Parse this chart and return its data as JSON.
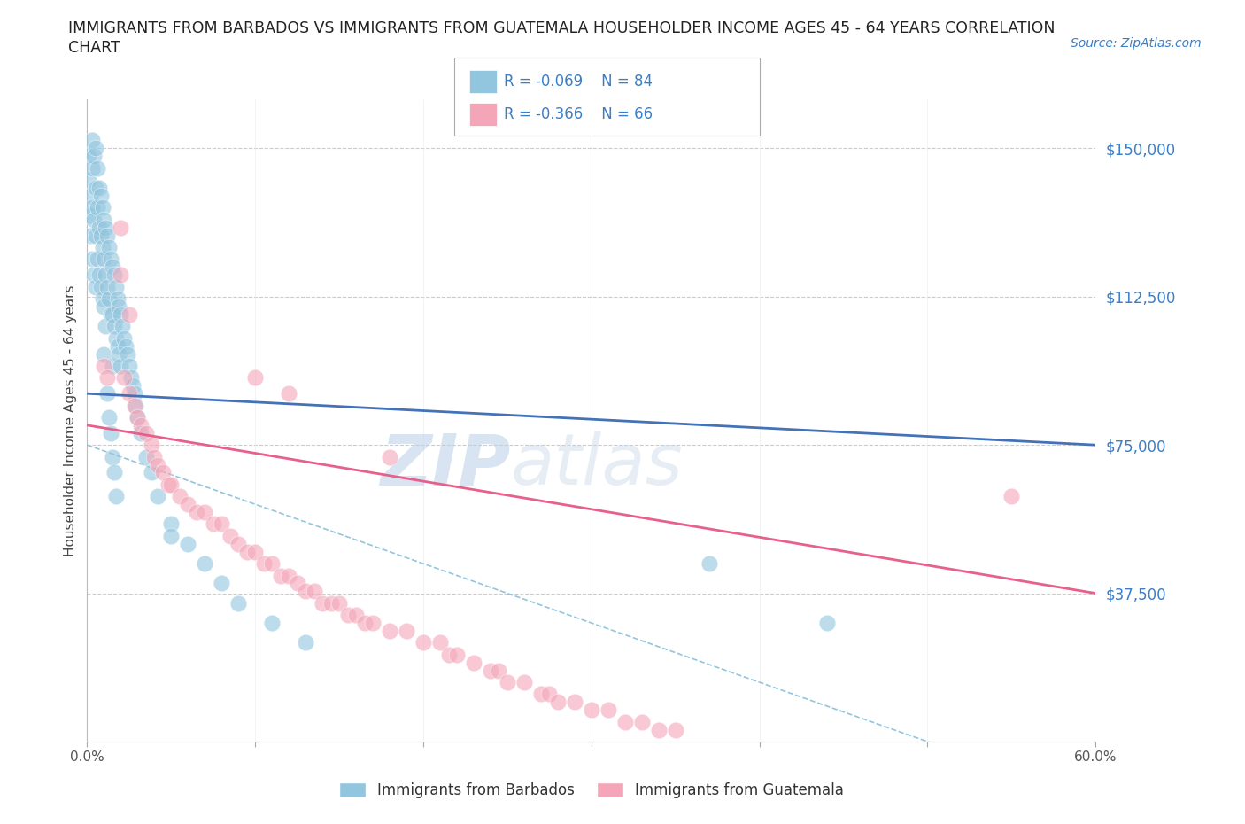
{
  "title_line1": "IMMIGRANTS FROM BARBADOS VS IMMIGRANTS FROM GUATEMALA HOUSEHOLDER INCOME AGES 45 - 64 YEARS CORRELATION",
  "title_line2": "CHART",
  "source": "Source: ZipAtlas.com",
  "ylabel": "Householder Income Ages 45 - 64 years",
  "xlim": [
    0.0,
    0.6
  ],
  "ylim": [
    0,
    162500
  ],
  "xticks": [
    0.0,
    0.1,
    0.2,
    0.3,
    0.4,
    0.5,
    0.6
  ],
  "xticklabels": [
    "0.0%",
    "",
    "",
    "",
    "",
    "",
    "60.0%"
  ],
  "ytick_positions": [
    37500,
    75000,
    112500,
    150000
  ],
  "ytick_labels": [
    "$37,500",
    "$75,000",
    "$112,500",
    "$150,000"
  ],
  "barbados_color": "#92c5de",
  "guatemala_color": "#f4a6b8",
  "barbados_line_color": "#4472b8",
  "guatemala_line_color": "#e8608a",
  "dashed_line_color": "#92c5de",
  "legend_text_color": "#3a7ec8",
  "ytick_color": "#3a7ec8",
  "source_color": "#3a7ec8",
  "legend_R_barbados": "R = -0.069",
  "legend_N_barbados": "N = 84",
  "legend_R_guatemala": "R = -0.366",
  "legend_N_guatemala": "N = 66",
  "legend_label_barbados": "Immigrants from Barbados",
  "legend_label_guatemala": "Immigrants from Guatemala",
  "watermark_zip": "ZIP",
  "watermark_atlas": "atlas",
  "background_color": "#ffffff",
  "grid_color": "#cccccc",
  "barbados_x": [
    0.001,
    0.001,
    0.002,
    0.002,
    0.002,
    0.003,
    0.003,
    0.003,
    0.003,
    0.004,
    0.004,
    0.004,
    0.005,
    0.005,
    0.005,
    0.005,
    0.006,
    0.006,
    0.006,
    0.007,
    0.007,
    0.007,
    0.008,
    0.008,
    0.008,
    0.009,
    0.009,
    0.009,
    0.01,
    0.01,
    0.01,
    0.01,
    0.011,
    0.011,
    0.011,
    0.012,
    0.012,
    0.013,
    0.013,
    0.014,
    0.014,
    0.015,
    0.015,
    0.015,
    0.016,
    0.016,
    0.017,
    0.017,
    0.018,
    0.018,
    0.019,
    0.019,
    0.02,
    0.02,
    0.021,
    0.022,
    0.023,
    0.024,
    0.025,
    0.026,
    0.027,
    0.028,
    0.029,
    0.03,
    0.032,
    0.035,
    0.038,
    0.042,
    0.05,
    0.06,
    0.07,
    0.08,
    0.09,
    0.11,
    0.13,
    0.012,
    0.013,
    0.014,
    0.015,
    0.016,
    0.017,
    0.05,
    0.37,
    0.44
  ],
  "barbados_y": [
    148000,
    142000,
    138000,
    133000,
    128000,
    152000,
    145000,
    135000,
    122000,
    148000,
    132000,
    118000,
    150000,
    140000,
    128000,
    115000,
    145000,
    135000,
    122000,
    140000,
    130000,
    118000,
    138000,
    128000,
    115000,
    135000,
    125000,
    112000,
    132000,
    122000,
    110000,
    98000,
    130000,
    118000,
    105000,
    128000,
    115000,
    125000,
    112000,
    122000,
    108000,
    120000,
    108000,
    95000,
    118000,
    105000,
    115000,
    102000,
    112000,
    100000,
    110000,
    98000,
    108000,
    95000,
    105000,
    102000,
    100000,
    98000,
    95000,
    92000,
    90000,
    88000,
    85000,
    82000,
    78000,
    72000,
    68000,
    62000,
    55000,
    50000,
    45000,
    40000,
    35000,
    30000,
    25000,
    88000,
    82000,
    78000,
    72000,
    68000,
    62000,
    52000,
    45000,
    30000
  ],
  "guatemala_x": [
    0.01,
    0.012,
    0.02,
    0.022,
    0.025,
    0.028,
    0.03,
    0.032,
    0.035,
    0.038,
    0.04,
    0.042,
    0.045,
    0.048,
    0.05,
    0.055,
    0.06,
    0.065,
    0.07,
    0.075,
    0.08,
    0.085,
    0.09,
    0.095,
    0.1,
    0.105,
    0.11,
    0.115,
    0.12,
    0.125,
    0.13,
    0.135,
    0.14,
    0.145,
    0.15,
    0.155,
    0.16,
    0.165,
    0.17,
    0.18,
    0.19,
    0.2,
    0.21,
    0.215,
    0.22,
    0.23,
    0.24,
    0.245,
    0.25,
    0.26,
    0.27,
    0.275,
    0.28,
    0.29,
    0.3,
    0.31,
    0.32,
    0.33,
    0.34,
    0.35,
    0.02,
    0.025,
    0.1,
    0.12,
    0.18,
    0.55
  ],
  "guatemala_y": [
    95000,
    92000,
    130000,
    92000,
    88000,
    85000,
    82000,
    80000,
    78000,
    75000,
    72000,
    70000,
    68000,
    65000,
    65000,
    62000,
    60000,
    58000,
    58000,
    55000,
    55000,
    52000,
    50000,
    48000,
    48000,
    45000,
    45000,
    42000,
    42000,
    40000,
    38000,
    38000,
    35000,
    35000,
    35000,
    32000,
    32000,
    30000,
    30000,
    28000,
    28000,
    25000,
    25000,
    22000,
    22000,
    20000,
    18000,
    18000,
    15000,
    15000,
    12000,
    12000,
    10000,
    10000,
    8000,
    8000,
    5000,
    5000,
    3000,
    3000,
    118000,
    108000,
    92000,
    88000,
    72000,
    62000
  ]
}
